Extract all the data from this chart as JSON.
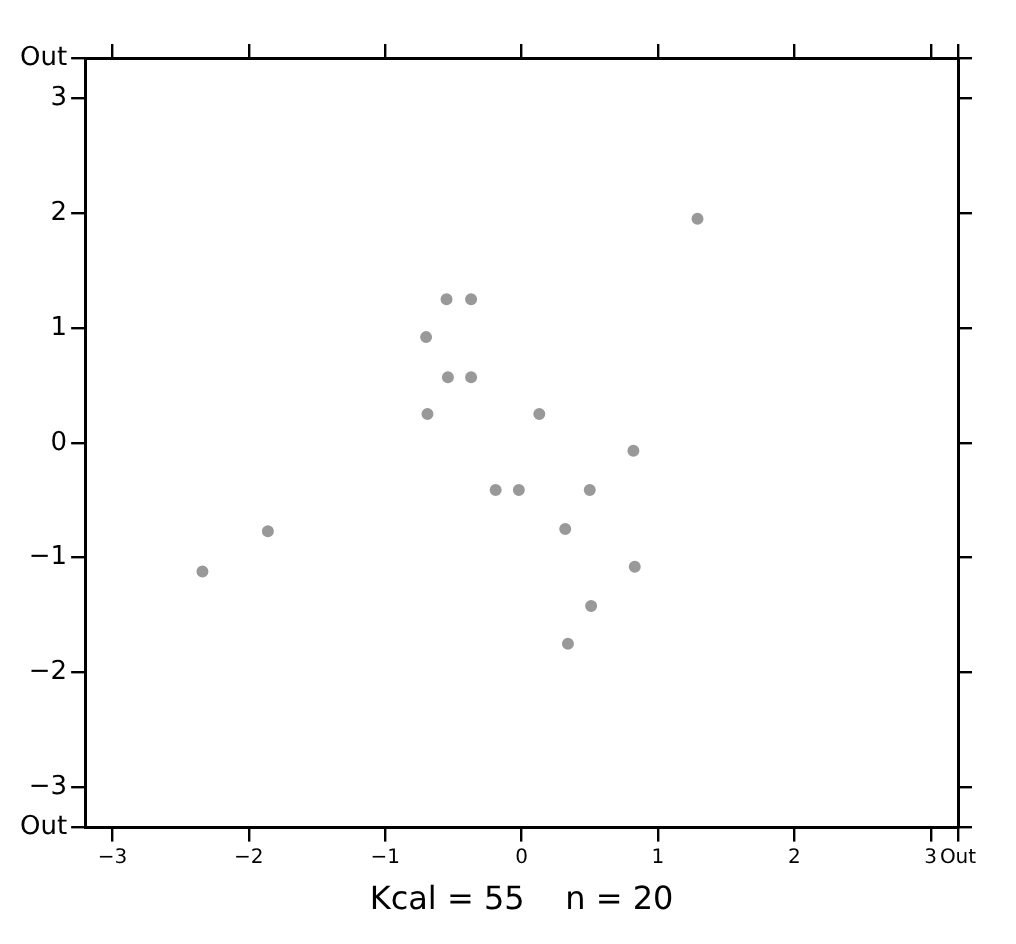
{
  "chart_data": {
    "type": "scatter",
    "xlabel": "Kcal = 55    n = 20",
    "x": [
      -0.55,
      -0.37,
      -0.7,
      -0.54,
      -0.37,
      -0.69,
      0.13,
      0.82,
      -0.19,
      -0.02,
      0.5,
      0.32,
      -1.86,
      -2.34,
      0.83,
      0.51,
      0.34,
      1.29
    ],
    "values": [
      1.25,
      1.25,
      0.92,
      0.57,
      0.57,
      0.25,
      0.25,
      -0.07,
      -0.41,
      -0.41,
      -0.41,
      -0.75,
      -0.77,
      -1.12,
      -1.08,
      -1.42,
      -1.75,
      1.95
    ],
    "color": "#999999",
    "marker": "circle",
    "grid": false,
    "legend": false,
    "xlim": [
      -3.2,
      3.2
    ],
    "xticks": [
      -3,
      -2,
      -1,
      0,
      1,
      2,
      3,
      {
        "value": 3.2,
        "label": "Out"
      }
    ],
    "ylim": [
      -3.35,
      3.35
    ],
    "yticks": [
      {
        "value": -3.35,
        "label": "Out"
      },
      -3,
      -2,
      -1,
      0,
      1,
      2,
      3,
      {
        "value": 3.35,
        "label": "Out"
      }
    ]
  }
}
